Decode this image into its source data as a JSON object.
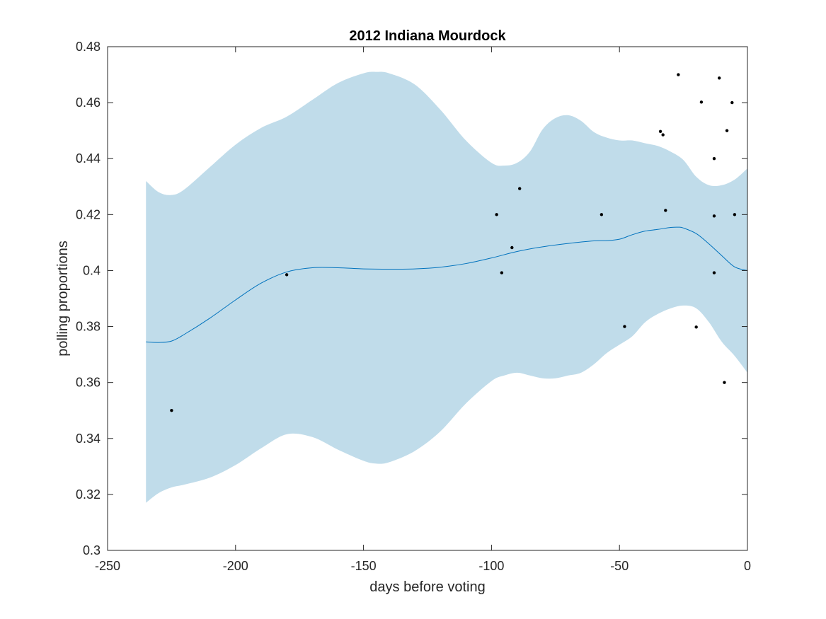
{
  "chart_data": {
    "type": "line",
    "title": "2012 Indiana Mourdock",
    "xlabel": "days before voting",
    "ylabel": "polling proportions",
    "xlim": [
      -250,
      0
    ],
    "ylim": [
      0.3,
      0.48
    ],
    "xticks": [
      -250,
      -200,
      -150,
      -100,
      -50,
      0
    ],
    "xtick_labels": [
      "-250",
      "-200",
      "-150",
      "-100",
      "-50",
      "0"
    ],
    "yticks": [
      0.3,
      0.32,
      0.34,
      0.36,
      0.38,
      0.4,
      0.42,
      0.44,
      0.46,
      0.48
    ],
    "ytick_labels": [
      "0.3",
      "0.32",
      "0.34",
      "0.36",
      "0.38",
      "0.4",
      "0.42",
      "0.44",
      "0.46",
      "0.48"
    ],
    "grid": false,
    "colors": {
      "band": "#c0dcea",
      "line": "#0072bd",
      "points": "#000000",
      "axes": "#262626"
    },
    "band": {
      "x": [
        -235,
        -230,
        -225,
        -220,
        -210,
        -200,
        -190,
        -180,
        -170,
        -160,
        -150,
        -145,
        -140,
        -130,
        -120,
        -110,
        -100,
        -95,
        -90,
        -85,
        -80,
        -75,
        -70,
        -65,
        -60,
        -55,
        -50,
        -45,
        -40,
        -35,
        -30,
        -25,
        -20,
        -15,
        -10,
        -5,
        0
      ],
      "upper": [
        0.432,
        0.428,
        0.427,
        0.429,
        0.437,
        0.445,
        0.451,
        0.455,
        0.461,
        0.467,
        0.4705,
        0.471,
        0.4705,
        0.4665,
        0.4575,
        0.4465,
        0.4385,
        0.4375,
        0.4385,
        0.4425,
        0.4505,
        0.4545,
        0.4555,
        0.4535,
        0.4495,
        0.4475,
        0.4465,
        0.4465,
        0.4455,
        0.4445,
        0.4425,
        0.4395,
        0.4335,
        0.4305,
        0.4305,
        0.4325,
        0.4365
      ],
      "lower": [
        0.317,
        0.3205,
        0.3225,
        0.3235,
        0.326,
        0.3305,
        0.3365,
        0.3415,
        0.3405,
        0.336,
        0.332,
        0.331,
        0.3315,
        0.3355,
        0.3425,
        0.3525,
        0.3605,
        0.3625,
        0.3635,
        0.3625,
        0.3615,
        0.3615,
        0.3625,
        0.3635,
        0.3665,
        0.3705,
        0.3735,
        0.3765,
        0.3815,
        0.3845,
        0.3865,
        0.3875,
        0.3865,
        0.3815,
        0.3745,
        0.3695,
        0.3635
      ]
    },
    "series": [
      {
        "x": [
          -235,
          -230,
          -225,
          -220,
          -210,
          -200,
          -190,
          -180,
          -170,
          -160,
          -150,
          -140,
          -130,
          -120,
          -110,
          -100,
          -90,
          -80,
          -70,
          -60,
          -55,
          -50,
          -45,
          -40,
          -35,
          -30,
          -27,
          -25,
          -20,
          -15,
          -10,
          -5,
          0
        ],
        "y": [
          0.3745,
          0.3743,
          0.3748,
          0.3772,
          0.383,
          0.3895,
          0.3955,
          0.3995,
          0.401,
          0.401,
          0.4006,
          0.4005,
          0.4006,
          0.4012,
          0.4025,
          0.4045,
          0.4068,
          0.4085,
          0.4097,
          0.4106,
          0.4107,
          0.4112,
          0.4128,
          0.4141,
          0.4147,
          0.4154,
          0.4155,
          0.4152,
          0.4132,
          0.4095,
          0.4053,
          0.4013,
          0.4
        ]
      }
    ],
    "points": {
      "x": [
        -225,
        -180,
        -98,
        -96,
        -92,
        -89,
        -57,
        -48,
        -34,
        -33,
        -32,
        -27,
        -20,
        -18,
        -13,
        -13,
        -13,
        -11,
        -9,
        -8,
        -6,
        -5
      ],
      "y": [
        0.35,
        0.3985,
        0.42,
        0.3992,
        0.4082,
        0.4293,
        0.42,
        0.38,
        0.4497,
        0.4485,
        0.4215,
        0.47,
        0.3798,
        0.4602,
        0.44,
        0.4195,
        0.3992,
        0.4688,
        0.36,
        0.45,
        0.46,
        0.42
      ]
    }
  }
}
